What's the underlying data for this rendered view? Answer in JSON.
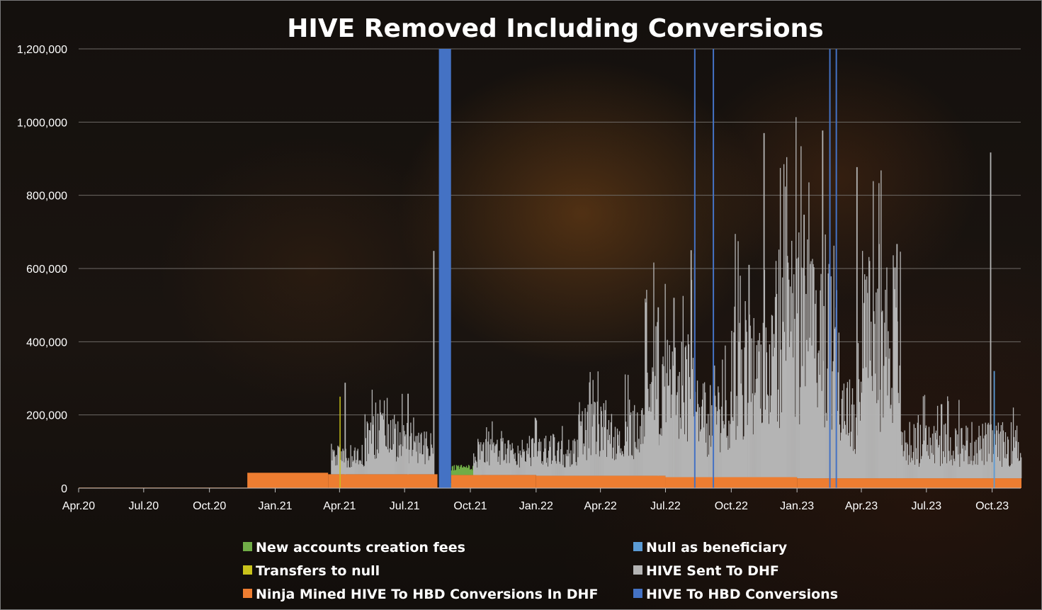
{
  "chart_data": {
    "type": "bar",
    "title": "HIVE Removed Including Conversions",
    "xlabel": "",
    "ylabel": "",
    "ylim": [
      0,
      1200000
    ],
    "yticks": [
      0,
      200000,
      400000,
      600000,
      800000,
      1000000,
      1200000
    ],
    "ytick_labels": [
      "0",
      "200,000",
      "400,000",
      "600,000",
      "800,000",
      "1,000,000",
      "1,200,000"
    ],
    "x_range": [
      "2020-04-01",
      "2023-11-10"
    ],
    "xticks": [
      "2020-04-01",
      "2020-07-01",
      "2020-10-01",
      "2021-01-01",
      "2021-04-01",
      "2021-07-01",
      "2021-10-01",
      "2022-01-01",
      "2022-04-01",
      "2022-07-01",
      "2022-10-01",
      "2023-01-01",
      "2023-04-01",
      "2023-07-01",
      "2023-10-01"
    ],
    "xtick_labels": [
      "Apr.20",
      "Jul.20",
      "Oct.20",
      "Jan.21",
      "Apr.21",
      "Jul.21",
      "Oct.21",
      "Jan.22",
      "Apr.22",
      "Jul.22",
      "Oct.22",
      "Jan.23",
      "Apr.23",
      "Jul.23",
      "Oct.23"
    ],
    "stacked": true,
    "grid": true,
    "legend_position": "bottom",
    "series": [
      {
        "name": "Ninja Mined HIVE To HBD Conversions In DHF",
        "color": "#ed7d31",
        "segments": [
          {
            "start": "2020-04-01",
            "end": "2020-11-22",
            "value": 1500
          },
          {
            "start": "2020-11-23",
            "end": "2021-03-15",
            "value": 42000
          },
          {
            "start": "2021-03-16",
            "end": "2021-08-15",
            "value": 38000
          },
          {
            "start": "2021-08-16",
            "end": "2021-09-03",
            "value": 2000
          },
          {
            "start": "2021-09-04",
            "end": "2021-12-31",
            "value": 36000
          },
          {
            "start": "2022-01-01",
            "end": "2022-06-30",
            "value": 34000
          },
          {
            "start": "2022-07-01",
            "end": "2022-12-31",
            "value": 30000
          },
          {
            "start": "2023-01-01",
            "end": "2023-11-10",
            "value": 27000
          }
        ]
      },
      {
        "name": "HIVE Sent To DHF",
        "color": "#b4b4b4",
        "level": [
          {
            "start": "2021-03-20",
            "end": "2021-05-05",
            "value": 65000
          },
          {
            "start": "2021-05-06",
            "end": "2021-06-30",
            "value": 130000
          },
          {
            "start": "2021-07-01",
            "end": "2021-08-10",
            "value": 90000
          },
          {
            "start": "2021-10-05",
            "end": "2021-12-15",
            "value": 80000
          },
          {
            "start": "2021-12-16",
            "end": "2022-02-28",
            "value": 90000
          },
          {
            "start": "2022-03-01",
            "end": "2022-05-31",
            "value": 160000
          },
          {
            "start": "2022-06-01",
            "end": "2022-08-15",
            "value": 330000
          },
          {
            "start": "2022-08-16",
            "end": "2022-09-30",
            "value": 200000
          },
          {
            "start": "2022-10-01",
            "end": "2022-11-30",
            "value": 380000
          },
          {
            "start": "2022-12-01",
            "end": "2023-02-28",
            "value": 520000
          },
          {
            "start": "2023-03-01",
            "end": "2023-03-31",
            "value": 220000
          },
          {
            "start": "2023-04-01",
            "end": "2023-05-25",
            "value": 500000
          },
          {
            "start": "2023-05-26",
            "end": "2023-11-10",
            "value": 120000
          }
        ],
        "peaks": [
          {
            "date": "2021-04-08",
            "value": 250000
          },
          {
            "date": "2021-07-05",
            "value": 220000
          },
          {
            "date": "2021-08-10",
            "value": 610000
          },
          {
            "date": "2022-06-20",
            "value": 460000
          },
          {
            "date": "2022-07-12",
            "value": 490000
          },
          {
            "date": "2022-08-05",
            "value": 620000
          },
          {
            "date": "2022-10-25",
            "value": 580000
          },
          {
            "date": "2022-11-15",
            "value": 940000
          },
          {
            "date": "2023-01-10",
            "value": 720000
          },
          {
            "date": "2023-02-05",
            "value": 950000
          },
          {
            "date": "2023-03-25",
            "value": 850000
          },
          {
            "date": "2023-04-25",
            "value": 640000
          },
          {
            "date": "2023-05-20",
            "value": 640000
          },
          {
            "date": "2023-09-28",
            "value": 890000
          }
        ]
      },
      {
        "name": "New accounts creation fees",
        "color": "#70ad47",
        "segments": [
          {
            "start": "2021-09-03",
            "end": "2021-10-15",
            "value": 28000
          }
        ]
      },
      {
        "name": "Transfers to null",
        "color": "#c9c31b",
        "spikes": [
          {
            "date": "2021-04-01",
            "value": 250000
          }
        ]
      },
      {
        "name": "Null as beneficiary",
        "color": "#5b9bd5",
        "spikes": [
          {
            "date": "2023-10-03",
            "value": 320000
          }
        ]
      },
      {
        "name": "HIVE To HBD Conversions",
        "color": "#4472c4",
        "blocks": [
          {
            "start": "2021-08-18",
            "end": "2021-09-04",
            "value": 1200000
          }
        ],
        "spikes": [
          {
            "date": "2021-08-24",
            "value": 1200000
          },
          {
            "date": "2021-08-27",
            "value": 1200000
          },
          {
            "date": "2021-08-29",
            "value": 1200000
          },
          {
            "date": "2021-09-01",
            "value": 1200000
          },
          {
            "date": "2022-08-10",
            "value": 1200000
          },
          {
            "date": "2022-09-05",
            "value": 1200000
          },
          {
            "date": "2023-02-15",
            "value": 1200000
          },
          {
            "date": "2023-02-24",
            "value": 1200000
          }
        ]
      }
    ],
    "legend": [
      {
        "name": "New accounts creation fees",
        "color": "#70ad47"
      },
      {
        "name": "Null as beneficiary",
        "color": "#5b9bd5"
      },
      {
        "name": "Transfers to null",
        "color": "#c9c31b"
      },
      {
        "name": "HIVE Sent To DHF",
        "color": "#b4b4b4"
      },
      {
        "name": "Ninja Mined HIVE To HBD Conversions In DHF",
        "color": "#ed7d31"
      },
      {
        "name": "HIVE To HBD Conversions",
        "color": "#4472c4"
      }
    ]
  }
}
